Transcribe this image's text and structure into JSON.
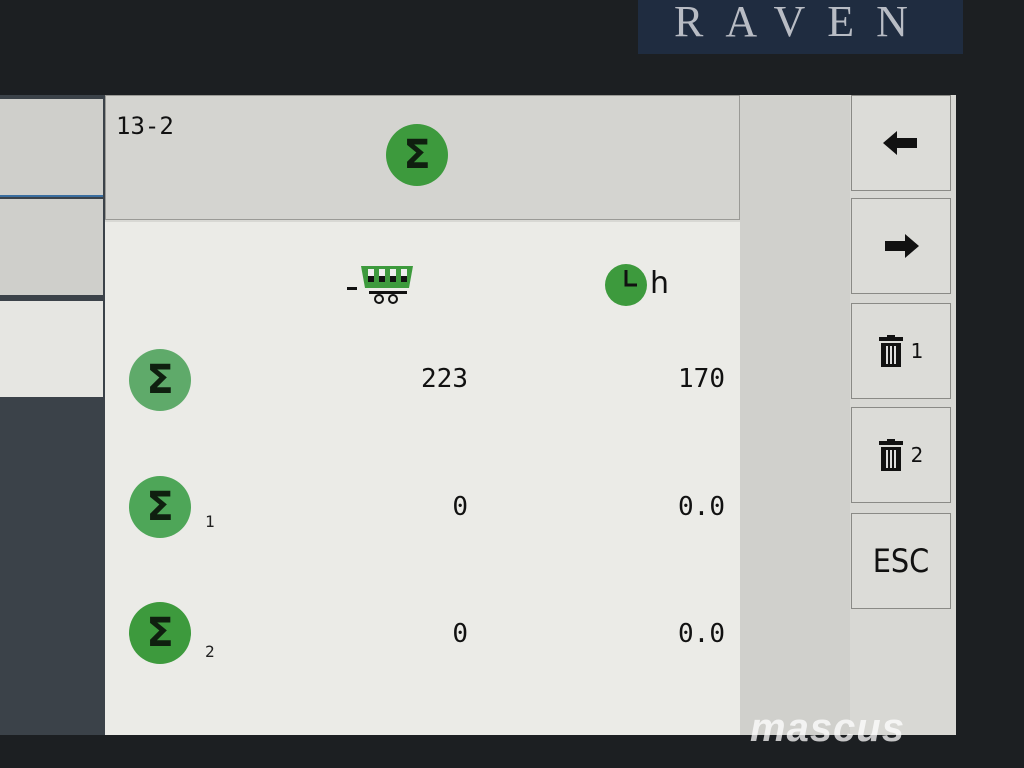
{
  "brand": "RAVEN",
  "header": {
    "page_id": "13-2",
    "icon": "sigma-total-icon"
  },
  "columns": [
    {
      "icon": "trailer-wagon-icon"
    },
    {
      "icon": "clock-icon",
      "unit": "h"
    }
  ],
  "rows": [
    {
      "icon": "sigma-total-icon",
      "subscript": "",
      "count": "223",
      "hours": "170"
    },
    {
      "icon": "sigma-total-icon",
      "subscript": "1",
      "count": "0",
      "hours": "0.0"
    },
    {
      "icon": "sigma-total-icon",
      "subscript": "2",
      "count": "0",
      "hours": "0.0"
    }
  ],
  "softkeys": [
    {
      "icon": "arrow-left-icon"
    },
    {
      "icon": "arrow-right-icon"
    },
    {
      "icon": "trash-icon",
      "label": "1"
    },
    {
      "icon": "trash-icon",
      "label": "2"
    },
    {
      "label": "ESC"
    }
  ],
  "colors": {
    "green": "#3d9a3d",
    "screen_bg": "#ebebe7"
  },
  "watermark": "mascus"
}
